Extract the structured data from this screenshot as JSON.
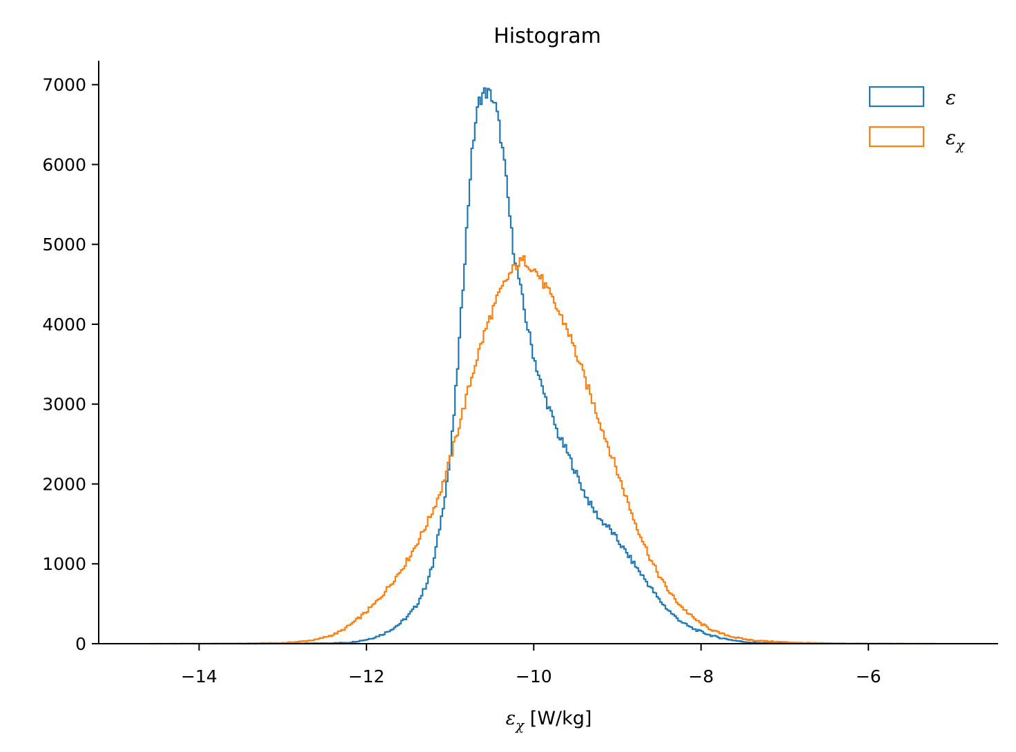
{
  "chart_data": {
    "type": "histogram",
    "title": "Histogram",
    "xlabel": "ε_χ [W/kg]",
    "xlabel_parts": {
      "symbol": "ε",
      "subscript": "χ",
      "unit": " [W/kg]"
    },
    "ylabel": "",
    "xlim": [
      -15.2,
      -4.45
    ],
    "ylim": [
      0,
      7300
    ],
    "xticks": [
      -14,
      -12,
      -10,
      -8,
      -6
    ],
    "xtick_labels": [
      "−14",
      "−12",
      "−10",
      "−8",
      "−6"
    ],
    "yticks": [
      0,
      1000,
      2000,
      3000,
      4000,
      5000,
      6000,
      7000
    ],
    "ytick_labels": [
      "0",
      "1000",
      "2000",
      "3000",
      "4000",
      "5000",
      "6000",
      "7000"
    ],
    "grid": false,
    "legend_position": "top-right",
    "series": [
      {
        "name": "ε",
        "legend_symbol": "ε",
        "legend_subscript": "",
        "color": "#1f77b4",
        "x": [
          -13.5,
          -13.0,
          -12.5,
          -12.2,
          -12.0,
          -11.9,
          -11.8,
          -11.7,
          -11.6,
          -11.5,
          -11.4,
          -11.3,
          -11.2,
          -11.1,
          -11.0,
          -10.95,
          -10.9,
          -10.85,
          -10.8,
          -10.75,
          -10.7,
          -10.65,
          -10.6,
          -10.55,
          -10.5,
          -10.45,
          -10.4,
          -10.35,
          -10.3,
          -10.25,
          -10.2,
          -10.15,
          -10.1,
          -10.05,
          -10.0,
          -9.95,
          -9.9,
          -9.85,
          -9.8,
          -9.75,
          -9.7,
          -9.6,
          -9.5,
          -9.4,
          -9.3,
          -9.2,
          -9.1,
          -9.0,
          -8.9,
          -8.8,
          -8.7,
          -8.6,
          -8.5,
          -8.4,
          -8.3,
          -8.2,
          -8.1,
          -8.0,
          -7.9,
          -7.8,
          -7.7,
          -7.6,
          -7.5,
          -7.4,
          -7.2,
          -7.0,
          -6.8
        ],
        "values": [
          0,
          2,
          5,
          15,
          50,
          80,
          120,
          180,
          250,
          350,
          480,
          700,
          1000,
          1600,
          2300,
          2900,
          3600,
          4400,
          5200,
          6000,
          6500,
          6800,
          6900,
          6900,
          6850,
          6700,
          6400,
          6000,
          5500,
          5000,
          4700,
          4400,
          4100,
          3850,
          3600,
          3400,
          3200,
          3050,
          2900,
          2750,
          2600,
          2400,
          2150,
          1900,
          1700,
          1550,
          1450,
          1300,
          1150,
          1000,
          850,
          700,
          550,
          430,
          330,
          250,
          190,
          150,
          110,
          80,
          60,
          40,
          25,
          15,
          8,
          4,
          0
        ]
      },
      {
        "name": "ε_χ",
        "legend_symbol": "ε",
        "legend_subscript": "χ",
        "color": "#ff7f0e",
        "x": [
          -14.6,
          -14.0,
          -13.5,
          -13.0,
          -12.8,
          -12.6,
          -12.5,
          -12.4,
          -12.3,
          -12.2,
          -12.1,
          -12.0,
          -11.9,
          -11.8,
          -11.7,
          -11.6,
          -11.5,
          -11.4,
          -11.3,
          -11.2,
          -11.1,
          -11.0,
          -10.9,
          -10.8,
          -10.7,
          -10.6,
          -10.5,
          -10.4,
          -10.3,
          -10.2,
          -10.1,
          -10.0,
          -9.9,
          -9.8,
          -9.7,
          -9.6,
          -9.5,
          -9.4,
          -9.3,
          -9.2,
          -9.1,
          -9.0,
          -8.9,
          -8.8,
          -8.7,
          -8.6,
          -8.5,
          -8.4,
          -8.3,
          -8.2,
          -8.1,
          -8.0,
          -7.9,
          -7.8,
          -7.7,
          -7.6,
          -7.5,
          -7.4,
          -7.2,
          -7.0,
          -6.8,
          -6.6,
          -6.4,
          -6.2,
          -6.0,
          -5.6,
          -5.2
        ],
        "values": [
          0,
          1,
          3,
          10,
          25,
          50,
          80,
          110,
          160,
          230,
          310,
          400,
          500,
          620,
          760,
          900,
          1060,
          1250,
          1450,
          1680,
          1950,
          2300,
          2700,
          3100,
          3500,
          3850,
          4150,
          4400,
          4600,
          4750,
          4800,
          4700,
          4550,
          4350,
          4150,
          3950,
          3650,
          3350,
          3050,
          2750,
          2450,
          2150,
          1850,
          1550,
          1300,
          1050,
          850,
          680,
          540,
          430,
          330,
          250,
          190,
          140,
          110,
          80,
          60,
          45,
          30,
          20,
          12,
          8,
          5,
          3,
          2,
          1,
          0
        ]
      }
    ]
  }
}
